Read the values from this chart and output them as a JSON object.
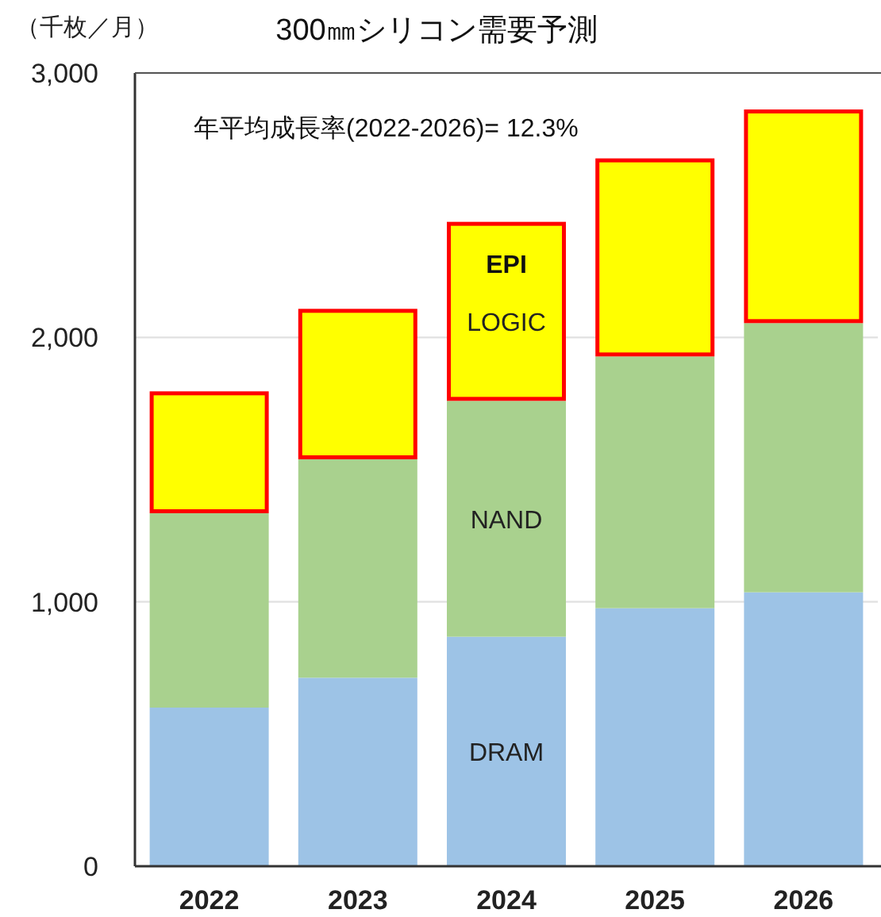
{
  "chart_data": {
    "type": "bar",
    "stacked": true,
    "title": "300㎜シリコン需要予測",
    "ylabel": "（千枚／月）",
    "categories": [
      "2022",
      "2023",
      "2024",
      "2025",
      "2026"
    ],
    "series": [
      {
        "name": "DRAM",
        "color": "#9dc3e6",
        "values": [
          600,
          713,
          868,
          976,
          1036
        ]
      },
      {
        "name": "NAND",
        "color": "#a9d18e",
        "values": [
          735,
          826,
          892,
          952,
          1018
        ]
      },
      {
        "name": "LOGIC",
        "color": "#ffff00",
        "values": [
          461,
          569,
          677,
          749,
          808
        ]
      }
    ],
    "annotations": [
      "年平均成長率(2022-2026)= 12.3%",
      "EPI"
    ],
    "ylim": [
      0,
      3000
    ],
    "yticks": [
      0,
      {
        "value": 1000,
        "label": "1,000"
      },
      {
        "value": 2000,
        "label": "2,000"
      },
      {
        "value": 3000,
        "label": "3,000"
      }
    ],
    "grid": "y"
  }
}
